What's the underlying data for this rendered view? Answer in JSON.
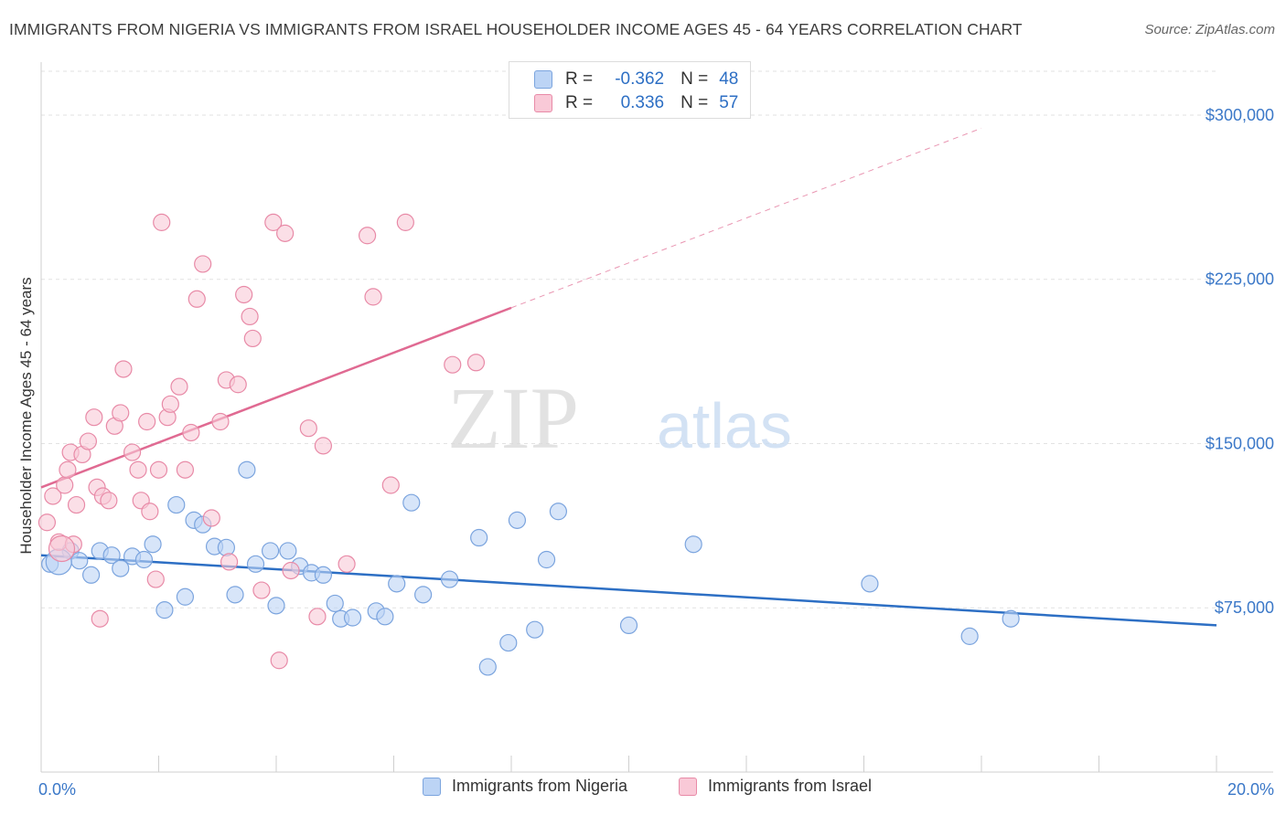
{
  "title": "IMMIGRANTS FROM NIGERIA VS IMMIGRANTS FROM ISRAEL HOUSEHOLDER INCOME AGES 45 - 64 YEARS CORRELATION CHART",
  "source": "Source: ZipAtlas.com",
  "watermark": {
    "zip": "ZIP",
    "atlas": "atlas"
  },
  "stats": {
    "r_label": "R =",
    "n_label": "N =",
    "rows": [
      {
        "r": "-0.362",
        "n": "48",
        "fill": "#bcd4f5",
        "stroke": "#7ba4de"
      },
      {
        "r": "0.336",
        "n": "57",
        "fill": "#f9c9d7",
        "stroke": "#e88aa7"
      }
    ]
  },
  "legend": {
    "items": [
      {
        "label": "Immigrants from Nigeria",
        "fill": "#bcd4f5",
        "stroke": "#7ba4de"
      },
      {
        "label": "Immigrants from Israel",
        "fill": "#f9c9d7",
        "stroke": "#e88aa7"
      }
    ]
  },
  "chart_data": {
    "type": "scatter",
    "xlabel": "",
    "ylabel": "Householder Income Ages 45 - 64 years",
    "xlim": [
      0,
      20
    ],
    "ylim": [
      0,
      320000
    ],
    "x_tick_labels": [
      "0.0%",
      "20.0%"
    ],
    "x_tick_values": [
      0,
      20
    ],
    "y_tick_labels": [
      "$75,000",
      "$150,000",
      "$225,000",
      "$300,000"
    ],
    "y_tick_values": [
      75000,
      150000,
      225000,
      300000
    ],
    "grid": true,
    "series": [
      {
        "name": "Immigrants from Nigeria",
        "color": "#7ba4de",
        "fill": "#bcd4f5",
        "trend": {
          "x": [
            0,
            20
          ],
          "y": [
            99000,
            67000
          ],
          "color": "#2d6fc4"
        },
        "points": [
          [
            0.15,
            95000
          ],
          [
            0.5,
            101000
          ],
          [
            0.65,
            96500
          ],
          [
            0.85,
            90000
          ],
          [
            1.0,
            101000
          ],
          [
            1.2,
            99000
          ],
          [
            1.35,
            93000
          ],
          [
            1.55,
            98500
          ],
          [
            1.75,
            97000
          ],
          [
            1.9,
            104000
          ],
          [
            2.1,
            74000
          ],
          [
            2.3,
            122000
          ],
          [
            2.45,
            80000
          ],
          [
            2.6,
            115000
          ],
          [
            2.75,
            113000
          ],
          [
            2.95,
            103000
          ],
          [
            3.15,
            102500
          ],
          [
            3.3,
            81000
          ],
          [
            3.5,
            138000
          ],
          [
            3.65,
            95000
          ],
          [
            3.9,
            101000
          ],
          [
            4.0,
            76000
          ],
          [
            4.2,
            101000
          ],
          [
            4.4,
            94000
          ],
          [
            4.6,
            91000
          ],
          [
            4.8,
            90000
          ],
          [
            5.0,
            77000
          ],
          [
            5.1,
            70000
          ],
          [
            5.3,
            70500
          ],
          [
            5.7,
            73500
          ],
          [
            5.85,
            71000
          ],
          [
            6.05,
            86000
          ],
          [
            6.5,
            81000
          ],
          [
            6.3,
            123000
          ],
          [
            6.95,
            88000
          ],
          [
            7.45,
            107000
          ],
          [
            7.6,
            48000
          ],
          [
            7.95,
            59000
          ],
          [
            8.1,
            115000
          ],
          [
            8.4,
            65000
          ],
          [
            8.6,
            97000
          ],
          [
            8.8,
            119000
          ],
          [
            10.0,
            67000
          ],
          [
            11.1,
            104000
          ],
          [
            14.1,
            86000
          ],
          [
            15.8,
            62000
          ],
          [
            16.5,
            70000
          ],
          [
            0.3,
            96000
          ]
        ]
      },
      {
        "name": "Immigrants from Israel",
        "color": "#e88aa7",
        "fill": "#f9c9d7",
        "trend": {
          "x": [
            0,
            8.0
          ],
          "y": [
            130000,
            212000
          ],
          "color": "#e06a92",
          "dash_to": [
            16.0,
            294000
          ]
        },
        "points": [
          [
            0.1,
            114000
          ],
          [
            0.2,
            126000
          ],
          [
            0.3,
            105000
          ],
          [
            0.4,
            131000
          ],
          [
            0.45,
            138000
          ],
          [
            0.5,
            146000
          ],
          [
            0.55,
            104000
          ],
          [
            0.6,
            122000
          ],
          [
            0.7,
            145000
          ],
          [
            0.8,
            151000
          ],
          [
            0.9,
            162000
          ],
          [
            0.95,
            130000
          ],
          [
            1.05,
            126000
          ],
          [
            1.15,
            124000
          ],
          [
            1.25,
            158000
          ],
          [
            1.35,
            164000
          ],
          [
            1.4,
            184000
          ],
          [
            1.55,
            146000
          ],
          [
            1.65,
            138000
          ],
          [
            1.7,
            124000
          ],
          [
            1.8,
            160000
          ],
          [
            1.85,
            119000
          ],
          [
            1.95,
            88000
          ],
          [
            2.05,
            251000
          ],
          [
            2.15,
            162000
          ],
          [
            2.2,
            168000
          ],
          [
            2.35,
            176000
          ],
          [
            2.45,
            138000
          ],
          [
            2.55,
            155000
          ],
          [
            2.65,
            216000
          ],
          [
            2.75,
            232000
          ],
          [
            2.9,
            116000
          ],
          [
            3.05,
            160000
          ],
          [
            3.15,
            179000
          ],
          [
            3.2,
            96000
          ],
          [
            3.35,
            177000
          ],
          [
            3.45,
            218000
          ],
          [
            3.55,
            208000
          ],
          [
            3.6,
            198000
          ],
          [
            3.75,
            83000
          ],
          [
            3.95,
            251000
          ],
          [
            4.05,
            51000
          ],
          [
            4.15,
            246000
          ],
          [
            4.25,
            92000
          ],
          [
            4.55,
            157000
          ],
          [
            4.7,
            71000
          ],
          [
            4.8,
            149000
          ],
          [
            5.2,
            95000
          ],
          [
            5.55,
            245000
          ],
          [
            5.65,
            217000
          ],
          [
            5.95,
            131000
          ],
          [
            6.2,
            251000
          ],
          [
            7.0,
            186000
          ],
          [
            7.4,
            187000
          ],
          [
            1.0,
            70000
          ],
          [
            2.0,
            138000
          ],
          [
            0.35,
            102000
          ]
        ]
      }
    ]
  }
}
